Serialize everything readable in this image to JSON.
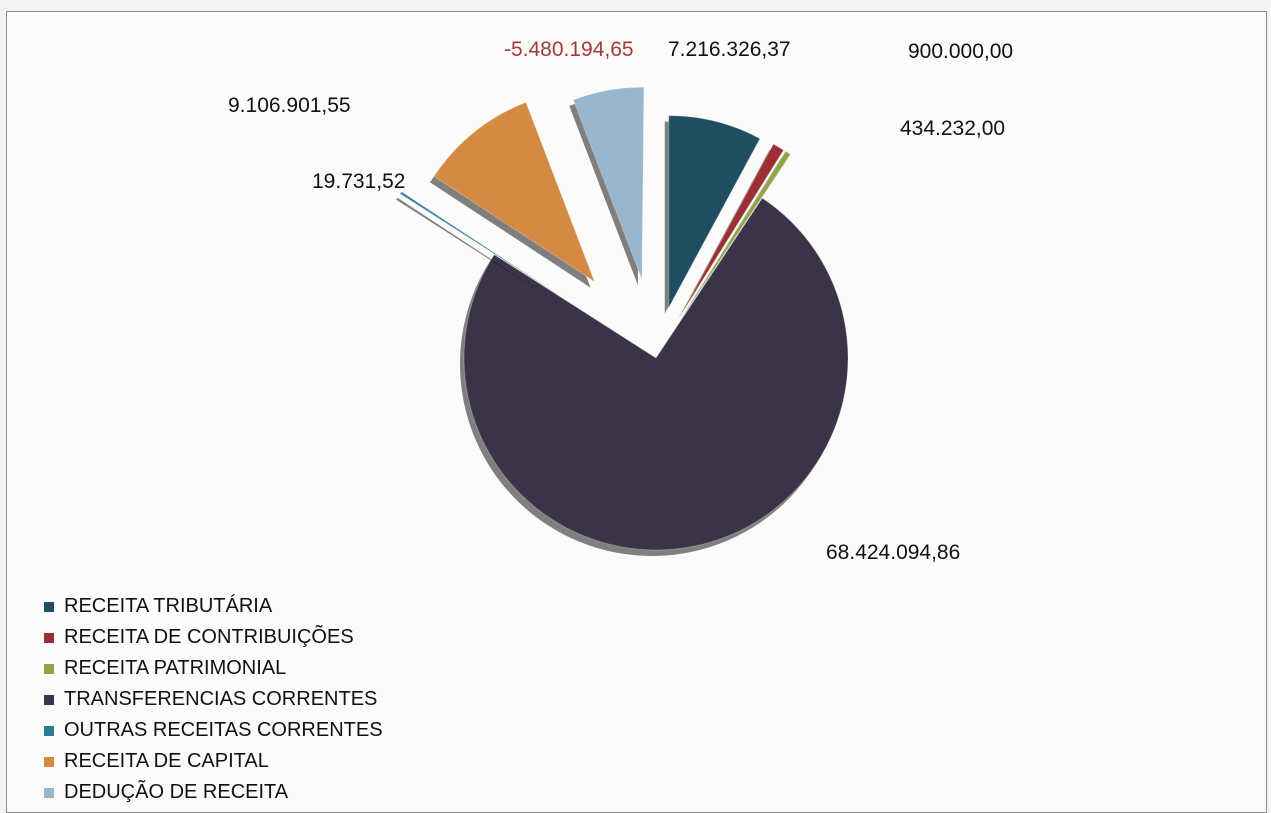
{
  "chart_data": {
    "type": "pie",
    "series": [
      {
        "name": "RECEITA TRIBUTÁRIA",
        "value": 7216326.37,
        "label": "7.216.326,37",
        "color": "#1f4e63"
      },
      {
        "name": "RECEITA DE CONTRIBUIÇÕES",
        "value": 900000.0,
        "label": "900.000,00",
        "color": "#9b2f33"
      },
      {
        "name": "RECEITA PATRIMONIAL",
        "value": 434232.0,
        "label": "434.232,00",
        "color": "#8fa544"
      },
      {
        "name": "TRANSFERENCIAS CORRENTES",
        "value": 68424094.86,
        "label": "68.424.094,86",
        "color": "#3b3347"
      },
      {
        "name": "OUTRAS RECEITAS CORRENTES",
        "value": 19731.52,
        "label": "19.731,52",
        "color": "#2a7c96"
      },
      {
        "name": "RECEITA DE CAPITAL",
        "value": 9106901.55,
        "label": "9.106.901,55",
        "color": "#d58a43"
      },
      {
        "name": "DEDUÇÃO DE RECEITA",
        "value": -5480194.65,
        "label": "-5.480.194,65",
        "color": "#9ab6cc"
      }
    ],
    "legend_position": "bottom-left"
  }
}
